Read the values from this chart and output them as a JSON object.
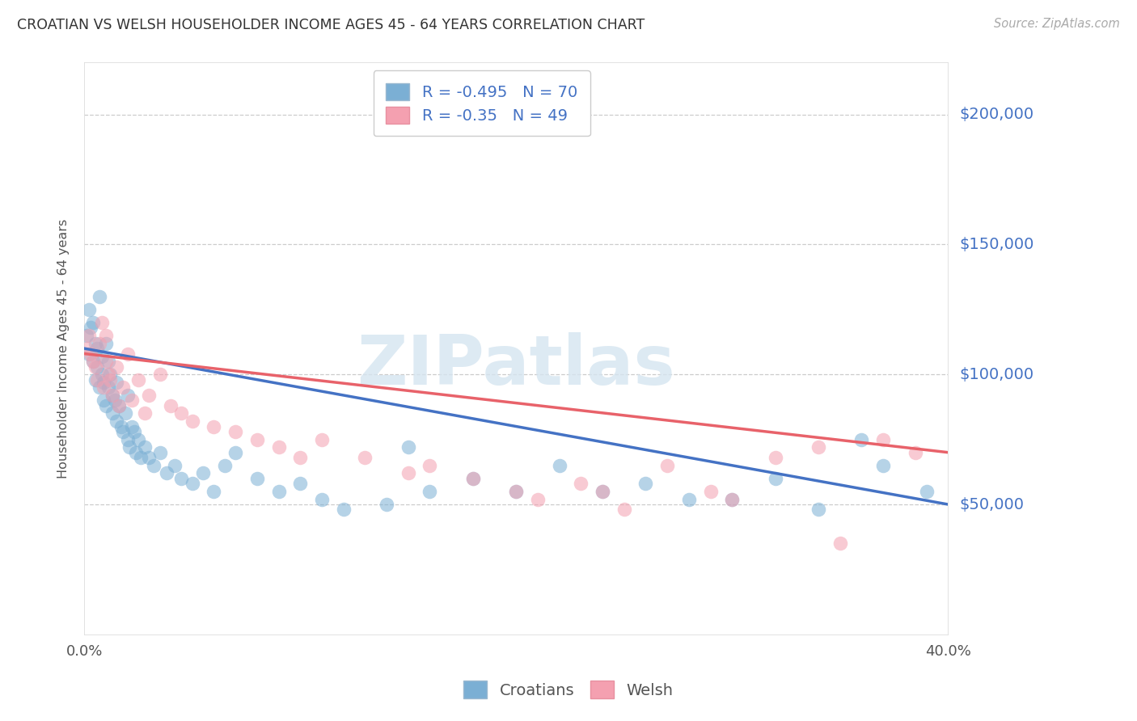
{
  "title": "CROATIAN VS WELSH HOUSEHOLDER INCOME AGES 45 - 64 YEARS CORRELATION CHART",
  "source": "Source: ZipAtlas.com",
  "ylabel": "Householder Income Ages 45 - 64 years",
  "ytick_labels": [
    "$50,000",
    "$100,000",
    "$150,000",
    "$200,000"
  ],
  "ytick_values": [
    50000,
    100000,
    150000,
    200000
  ],
  "ytick_color": "#4472c4",
  "croatian_color": "#7bafd4",
  "welsh_color": "#f4a0b0",
  "line_croatian_color": "#4472c4",
  "line_welsh_color": "#e8626a",
  "background_color": "#ffffff",
  "grid_color": "#cccccc",
  "title_color": "#333333",
  "source_color": "#aaaaaa",
  "croatians_label": "Croatians",
  "welsh_label": "Welsh",
  "R_croatian": -0.495,
  "N_croatian": 70,
  "R_welsh": -0.35,
  "N_welsh": 49,
  "xlim": [
    0.0,
    0.4
  ],
  "ylim": [
    0,
    220000
  ],
  "croatian_x": [
    0.001,
    0.002,
    0.002,
    0.003,
    0.004,
    0.004,
    0.005,
    0.005,
    0.006,
    0.006,
    0.007,
    0.007,
    0.008,
    0.008,
    0.009,
    0.009,
    0.01,
    0.01,
    0.011,
    0.011,
    0.012,
    0.013,
    0.013,
    0.014,
    0.015,
    0.015,
    0.016,
    0.017,
    0.018,
    0.019,
    0.02,
    0.02,
    0.021,
    0.022,
    0.023,
    0.024,
    0.025,
    0.026,
    0.028,
    0.03,
    0.032,
    0.035,
    0.038,
    0.042,
    0.045,
    0.05,
    0.055,
    0.06,
    0.065,
    0.07,
    0.08,
    0.09,
    0.1,
    0.11,
    0.12,
    0.14,
    0.15,
    0.16,
    0.18,
    0.2,
    0.22,
    0.24,
    0.26,
    0.28,
    0.3,
    0.32,
    0.34,
    0.36,
    0.37,
    0.39
  ],
  "croatian_y": [
    115000,
    125000,
    108000,
    118000,
    105000,
    120000,
    112000,
    98000,
    103000,
    110000,
    130000,
    95000,
    107000,
    100000,
    97000,
    90000,
    112000,
    88000,
    95000,
    105000,
    100000,
    92000,
    85000,
    90000,
    97000,
    82000,
    88000,
    80000,
    78000,
    85000,
    75000,
    92000,
    72000,
    80000,
    78000,
    70000,
    75000,
    68000,
    72000,
    68000,
    65000,
    70000,
    62000,
    65000,
    60000,
    58000,
    62000,
    55000,
    65000,
    70000,
    60000,
    55000,
    58000,
    52000,
    48000,
    50000,
    72000,
    55000,
    60000,
    55000,
    65000,
    55000,
    58000,
    52000,
    52000,
    60000,
    48000,
    75000,
    65000,
    55000
  ],
  "welsh_x": [
    0.001,
    0.002,
    0.003,
    0.004,
    0.005,
    0.006,
    0.007,
    0.008,
    0.009,
    0.01,
    0.01,
    0.011,
    0.012,
    0.013,
    0.015,
    0.016,
    0.018,
    0.02,
    0.022,
    0.025,
    0.028,
    0.03,
    0.035,
    0.04,
    0.045,
    0.05,
    0.06,
    0.07,
    0.08,
    0.09,
    0.1,
    0.11,
    0.13,
    0.15,
    0.16,
    0.18,
    0.2,
    0.21,
    0.23,
    0.24,
    0.25,
    0.27,
    0.29,
    0.3,
    0.32,
    0.34,
    0.35,
    0.37,
    0.385
  ],
  "welsh_y": [
    110000,
    115000,
    108000,
    105000,
    103000,
    98000,
    112000,
    120000,
    95000,
    105000,
    115000,
    100000,
    98000,
    92000,
    103000,
    88000,
    95000,
    108000,
    90000,
    98000,
    85000,
    92000,
    100000,
    88000,
    85000,
    82000,
    80000,
    78000,
    75000,
    72000,
    68000,
    75000,
    68000,
    62000,
    65000,
    60000,
    55000,
    52000,
    58000,
    55000,
    48000,
    65000,
    55000,
    52000,
    68000,
    72000,
    35000,
    75000,
    70000
  ],
  "croatian_line_x0": 0.0,
  "croatian_line_y0": 110000,
  "croatian_line_x1": 0.4,
  "croatian_line_y1": 50000,
  "welsh_line_x0": 0.0,
  "welsh_line_y0": 108000,
  "welsh_line_x1": 0.4,
  "welsh_line_y1": 70000
}
